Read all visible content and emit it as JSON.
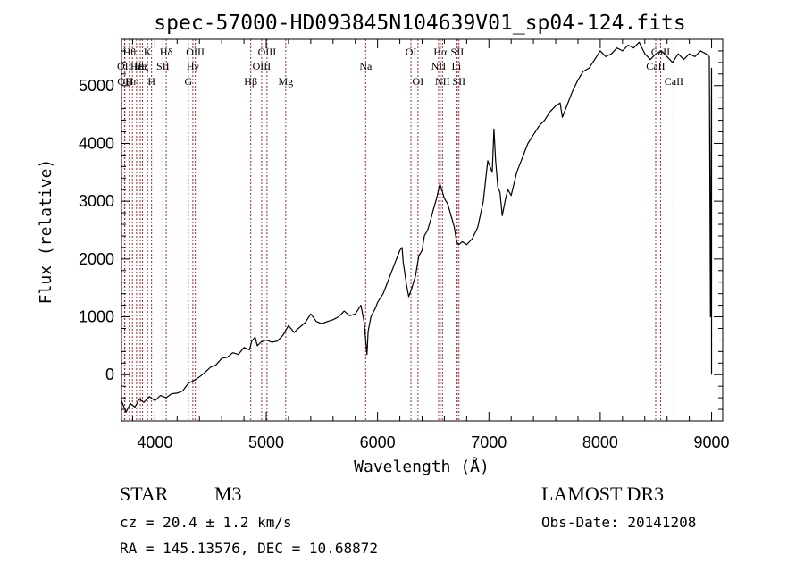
{
  "chart_data": {
    "type": "line",
    "title": "spec-57000-HD093845N104639V01_sp04-124.fits",
    "xlabel": "Wavelength (Å)",
    "ylabel": "Flux (relative)",
    "xlim": [
      3700,
      9100
    ],
    "ylim": [
      -800,
      5800
    ],
    "xticks": [
      4000,
      5000,
      6000,
      7000,
      8000,
      9000
    ],
    "yticks": [
      0,
      1000,
      2000,
      3000,
      4000,
      5000
    ],
    "grid": false,
    "series": [
      {
        "points": [
          [
            3700,
            -450
          ],
          [
            3740,
            -650
          ],
          [
            3780,
            -500
          ],
          [
            3820,
            -560
          ],
          [
            3860,
            -420
          ],
          [
            3900,
            -480
          ],
          [
            3950,
            -380
          ],
          [
            4000,
            -450
          ],
          [
            4050,
            -360
          ],
          [
            4100,
            -400
          ],
          [
            4150,
            -330
          ],
          [
            4200,
            -320
          ],
          [
            4250,
            -280
          ],
          [
            4300,
            -150
          ],
          [
            4350,
            -100
          ],
          [
            4400,
            -40
          ],
          [
            4450,
            40
          ],
          [
            4500,
            130
          ],
          [
            4550,
            170
          ],
          [
            4600,
            280
          ],
          [
            4650,
            300
          ],
          [
            4700,
            380
          ],
          [
            4750,
            350
          ],
          [
            4800,
            470
          ],
          [
            4850,
            430
          ],
          [
            4870,
            580
          ],
          [
            4900,
            650
          ],
          [
            4920,
            500
          ],
          [
            4950,
            560
          ],
          [
            5000,
            600
          ],
          [
            5050,
            560
          ],
          [
            5100,
            580
          ],
          [
            5150,
            680
          ],
          [
            5200,
            850
          ],
          [
            5250,
            730
          ],
          [
            5300,
            820
          ],
          [
            5350,
            900
          ],
          [
            5400,
            1050
          ],
          [
            5450,
            920
          ],
          [
            5500,
            880
          ],
          [
            5550,
            920
          ],
          [
            5600,
            950
          ],
          [
            5650,
            1000
          ],
          [
            5700,
            1100
          ],
          [
            5750,
            1020
          ],
          [
            5800,
            1050
          ],
          [
            5850,
            1200
          ],
          [
            5880,
            900
          ],
          [
            5895,
            550
          ],
          [
            5905,
            350
          ],
          [
            5915,
            750
          ],
          [
            5940,
            1000
          ],
          [
            5980,
            1150
          ],
          [
            6000,
            1250
          ],
          [
            6050,
            1400
          ],
          [
            6080,
            1550
          ],
          [
            6100,
            1650
          ],
          [
            6150,
            1900
          ],
          [
            6200,
            2150
          ],
          [
            6220,
            2200
          ],
          [
            6230,
            1950
          ],
          [
            6260,
            1550
          ],
          [
            6280,
            1350
          ],
          [
            6300,
            1450
          ],
          [
            6340,
            1700
          ],
          [
            6370,
            2050
          ],
          [
            6400,
            2150
          ],
          [
            6420,
            2400
          ],
          [
            6450,
            2500
          ],
          [
            6480,
            2700
          ],
          [
            6500,
            2850
          ],
          [
            6530,
            3050
          ],
          [
            6560,
            3300
          ],
          [
            6580,
            3180
          ],
          [
            6600,
            3050
          ],
          [
            6630,
            2950
          ],
          [
            6660,
            2750
          ],
          [
            6690,
            2550
          ],
          [
            6710,
            2300
          ],
          [
            6730,
            2250
          ],
          [
            6760,
            2300
          ],
          [
            6800,
            2250
          ],
          [
            6850,
            2350
          ],
          [
            6900,
            2550
          ],
          [
            6950,
            3000
          ],
          [
            6970,
            3350
          ],
          [
            6990,
            3700
          ],
          [
            7010,
            3600
          ],
          [
            7030,
            3500
          ],
          [
            7045,
            4250
          ],
          [
            7060,
            3700
          ],
          [
            7080,
            3250
          ],
          [
            7100,
            3150
          ],
          [
            7120,
            2750
          ],
          [
            7150,
            3050
          ],
          [
            7170,
            3200
          ],
          [
            7200,
            3100
          ],
          [
            7250,
            3500
          ],
          [
            7300,
            3750
          ],
          [
            7350,
            4000
          ],
          [
            7400,
            4150
          ],
          [
            7450,
            4300
          ],
          [
            7500,
            4400
          ],
          [
            7550,
            4550
          ],
          [
            7600,
            4650
          ],
          [
            7640,
            4700
          ],
          [
            7660,
            4450
          ],
          [
            7680,
            4550
          ],
          [
            7700,
            4650
          ],
          [
            7750,
            4900
          ],
          [
            7800,
            5100
          ],
          [
            7850,
            5250
          ],
          [
            7900,
            5300
          ],
          [
            7950,
            5450
          ],
          [
            8000,
            5600
          ],
          [
            8050,
            5500
          ],
          [
            8100,
            5550
          ],
          [
            8150,
            5650
          ],
          [
            8200,
            5600
          ],
          [
            8250,
            5700
          ],
          [
            8300,
            5650
          ],
          [
            8350,
            5750
          ],
          [
            8400,
            5550
          ],
          [
            8450,
            5450
          ],
          [
            8500,
            5550
          ],
          [
            8550,
            5600
          ],
          [
            8600,
            5500
          ],
          [
            8650,
            5400
          ],
          [
            8700,
            5550
          ],
          [
            8750,
            5450
          ],
          [
            8800,
            5550
          ],
          [
            8850,
            5500
          ],
          [
            8900,
            5600
          ],
          [
            8950,
            5550
          ],
          [
            8980,
            5500
          ],
          [
            8990,
            1000
          ],
          [
            9000,
            5300
          ],
          [
            9000,
            0
          ]
        ]
      }
    ],
    "line_markers": [
      {
        "wave": 3727,
        "labels": [
          "OII"
        ],
        "row": 2
      },
      {
        "wave": 3730,
        "labels": [
          "OII"
        ],
        "row": 3
      },
      {
        "wave": 3771,
        "labels": [
          "Hθ"
        ],
        "row": 1
      },
      {
        "wave": 3798,
        "labels": [
          "Hη"
        ],
        "row": 3
      },
      {
        "wave": 3835,
        "labels": [
          "Hε"
        ],
        "row": 2
      },
      {
        "wave": 3869,
        "labels": [
          "He"
        ],
        "row": 2
      },
      {
        "wave": 3889,
        "labels": [
          "Hζ"
        ],
        "row": 2
      },
      {
        "wave": 3934,
        "labels": [
          "K"
        ],
        "row": 1
      },
      {
        "wave": 3970,
        "labels": [
          "H"
        ],
        "row": 3
      },
      {
        "wave": 4072,
        "labels": [
          "SII"
        ],
        "row": 2
      },
      {
        "wave": 4102,
        "labels": [
          "Hδ"
        ],
        "row": 1
      },
      {
        "wave": 4300,
        "labels": [
          "G"
        ],
        "row": 3
      },
      {
        "wave": 4341,
        "labels": [
          "Hγ"
        ],
        "row": 2
      },
      {
        "wave": 4363,
        "labels": [
          "OIII"
        ],
        "row": 1
      },
      {
        "wave": 4861,
        "labels": [
          "Hβ"
        ],
        "row": 3
      },
      {
        "wave": 4959,
        "labels": [
          "OIII"
        ],
        "row": 2
      },
      {
        "wave": 5007,
        "labels": [
          "OIII"
        ],
        "row": 1
      },
      {
        "wave": 5175,
        "labels": [
          "Mg"
        ],
        "row": 3
      },
      {
        "wave": 5893,
        "labels": [
          "Na"
        ],
        "row": 2
      },
      {
        "wave": 6300,
        "labels": [
          "OI"
        ],
        "row": 1
      },
      {
        "wave": 6363,
        "labels": [
          "OI"
        ],
        "row": 3
      },
      {
        "wave": 6548,
        "labels": [
          "NII"
        ],
        "row": 2
      },
      {
        "wave": 6563,
        "labels": [
          "Hα"
        ],
        "row": 1
      },
      {
        "wave": 6583,
        "labels": [
          "NII"
        ],
        "row": 3
      },
      {
        "wave": 6708,
        "labels": [
          "Li"
        ],
        "row": 2
      },
      {
        "wave": 6716,
        "labels": [
          "SII"
        ],
        "row": 1
      },
      {
        "wave": 6731,
        "labels": [
          "SII"
        ],
        "row": 3
      },
      {
        "wave": 8498,
        "labels": [
          "CaII"
        ],
        "row": 2
      },
      {
        "wave": 8542,
        "labels": [
          "CaII"
        ],
        "row": 1
      },
      {
        "wave": 8662,
        "labels": [
          "CaII"
        ],
        "row": 3
      }
    ]
  },
  "info": {
    "class_label": "STAR",
    "subclass": "M3",
    "survey": "LAMOST DR3",
    "redshift": "cz = 20.4 ± 1.2 km/s",
    "obs_date": "Obs-Date: 20141208",
    "coords": "RA = 145.13576, DEC =  10.68872"
  },
  "colors": {
    "spectrum": "#000000",
    "marker_lines": "#a52a2a",
    "axes": "#000000"
  }
}
